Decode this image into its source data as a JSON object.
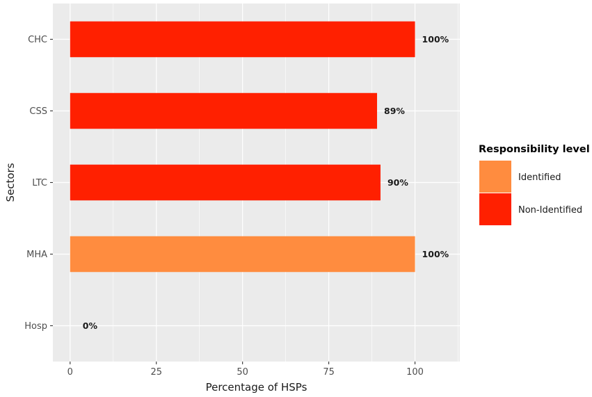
{
  "chart_data": {
    "type": "bar",
    "orientation": "horizontal",
    "categories": [
      "CHC",
      "CSS",
      "LTC",
      "MHA",
      "Hosp"
    ],
    "values": [
      100,
      89,
      90,
      100,
      0
    ],
    "data_labels": [
      "100%",
      "89%",
      "90%",
      "100%",
      "0%"
    ],
    "bar_groups": [
      "Non-Identified",
      "Non-Identified",
      "Non-Identified",
      "Identified",
      "Non-Identified"
    ],
    "xlabel": "Percentage of HSPs",
    "ylabel": "Sectors",
    "xlim": [
      -5,
      113
    ],
    "x_ticks": [
      0,
      25,
      50,
      75,
      100
    ],
    "x_tick_labels": [
      "0",
      "25",
      "50",
      "75",
      "100"
    ],
    "grid": true,
    "legend": {
      "title": "Responsibility level",
      "placement": "right",
      "entries": [
        {
          "label": "Identified",
          "color": "#FF8C3F"
        },
        {
          "label": "Non-Identified",
          "color": "#FF2000"
        }
      ]
    },
    "colors": {
      "panel_background": "#EBEBEB",
      "grid": "#FFFFFF",
      "Identified": "#FF8C3F",
      "Non-Identified": "#FF2000"
    }
  }
}
